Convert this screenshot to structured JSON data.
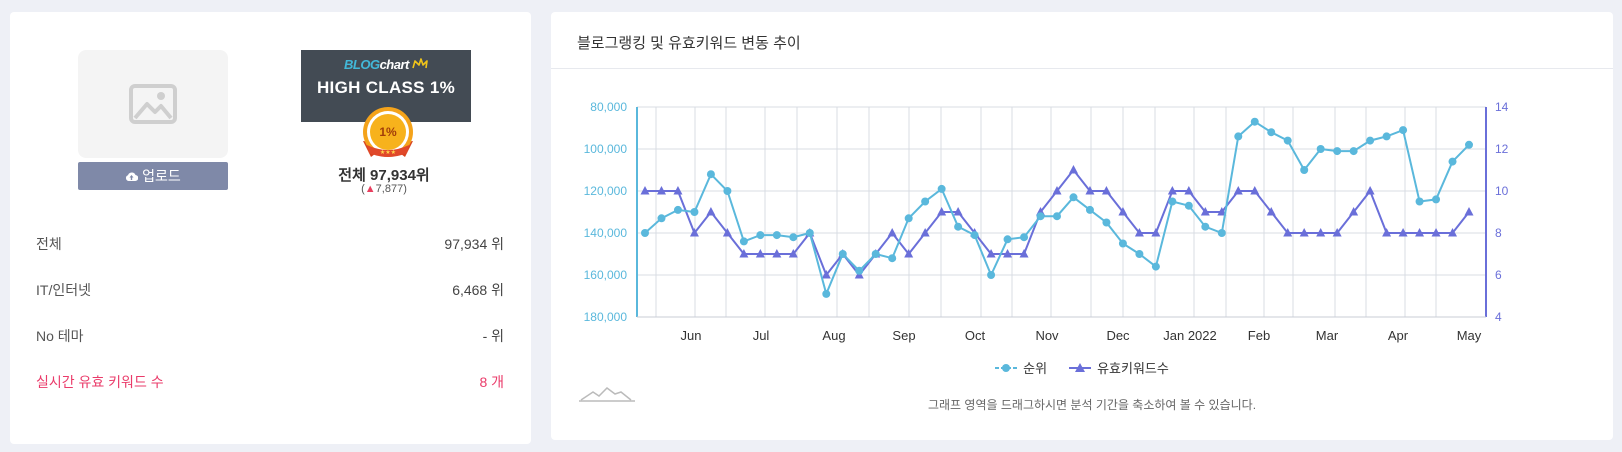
{
  "left": {
    "upload_label": "업로드",
    "badge": {
      "logo_blog": "BLOG",
      "logo_chart": "chart",
      "class_label": "HIGH CLASS 1%",
      "medal_text": "1%"
    },
    "total_rank": "전체 97,934위",
    "rank_change_prefix": "(",
    "rank_change_arrow": "▲",
    "rank_change_value": "7,877",
    "rank_change_suffix": ")",
    "stats": [
      {
        "label": "전체",
        "value": "97,934 위"
      },
      {
        "label": "IT/인터넷",
        "value": "6,468 위"
      },
      {
        "label": "No 테마",
        "value": "- 위"
      },
      {
        "label": "실시간 유효 키워드 수",
        "value": "8 개"
      }
    ]
  },
  "right": {
    "title": "블로그랭킹 및 유효키워드 변동 추이",
    "legend_rank": "순위",
    "legend_keywords": "유효키워드수",
    "hint": "그래프 영역을 드래그하시면 분석 기간을 축소하여 볼 수 있습니다."
  },
  "colors": {
    "rank_line": "#5ab8dc",
    "keyword_line": "#6a6fd9",
    "accent_pink": "#ea3b6a"
  },
  "chart_data": {
    "type": "line",
    "title": "블로그랭킹 및 유효키워드 변동 추이",
    "x_tick_labels": [
      "Jun",
      "Jul",
      "Aug",
      "Sep",
      "Oct",
      "Nov",
      "Dec",
      "Jan 2022",
      "Feb",
      "Mar",
      "Apr",
      "May"
    ],
    "y_left": {
      "label": "순위",
      "ticks": [
        "80,000",
        "100,000",
        "120,000",
        "140,000",
        "160,000",
        "180,000"
      ],
      "range": [
        80000,
        180000
      ],
      "reversed": true
    },
    "y_right": {
      "label": "유효키워드수",
      "ticks": [
        "14",
        "12",
        "10",
        "8",
        "6",
        "4"
      ],
      "range": [
        4,
        14
      ]
    },
    "series": [
      {
        "name": "순위",
        "values": [
          140000,
          133000,
          129000,
          130000,
          112000,
          120000,
          144000,
          141000,
          141000,
          142000,
          140000,
          169000,
          150000,
          158000,
          150000,
          152000,
          133000,
          125000,
          119000,
          137000,
          141000,
          160000,
          143000,
          142000,
          132000,
          132000,
          123000,
          129000,
          135000,
          145000,
          150000,
          156000,
          125000,
          127000,
          137000,
          140000,
          94000,
          87000,
          92000,
          96000,
          110000,
          100000,
          101000,
          101000,
          96000,
          94000,
          91000,
          125000,
          124000,
          106000,
          98000
        ]
      },
      {
        "name": "유효키워드수",
        "values": [
          10,
          10,
          10,
          8,
          9,
          8,
          7,
          7,
          7,
          7,
          8,
          6,
          7,
          6,
          7,
          8,
          7,
          8,
          9,
          9,
          8,
          7,
          7,
          7,
          9,
          10,
          11,
          10,
          10,
          9,
          8,
          8,
          10,
          10,
          9,
          9,
          10,
          10,
          9,
          8,
          8,
          8,
          8,
          9,
          10,
          8,
          8,
          8,
          8,
          8,
          9
        ]
      }
    ]
  }
}
